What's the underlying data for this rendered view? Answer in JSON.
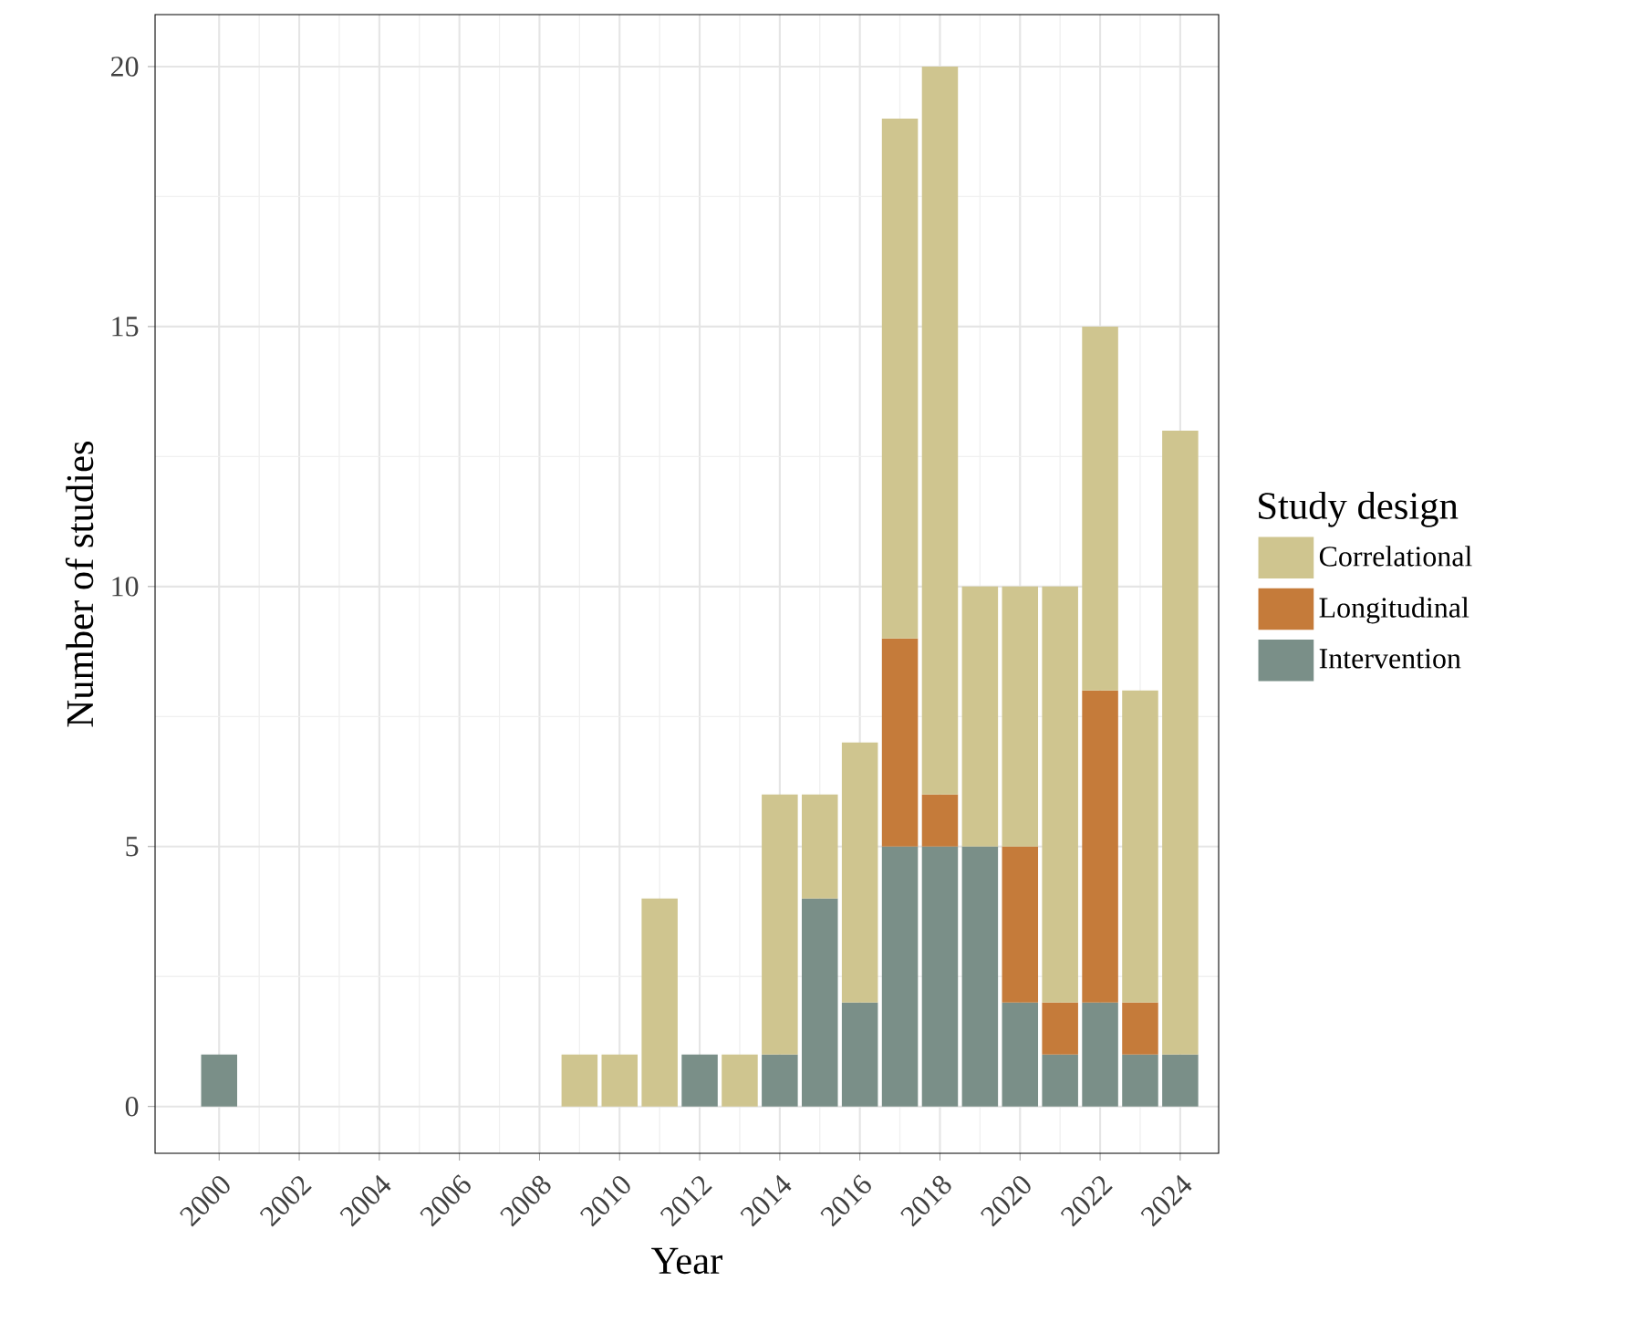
{
  "chart_data": {
    "type": "bar",
    "stacked": true,
    "xlabel": "Year",
    "ylabel": "Number of studies",
    "legend_title": "Study design",
    "legend": "right",
    "grid": true,
    "x": [
      2000,
      2009,
      2010,
      2011,
      2012,
      2013,
      2014,
      2015,
      2016,
      2017,
      2018,
      2019,
      2020,
      2021,
      2022,
      2023,
      2024
    ],
    "series": [
      {
        "name": "Intervention",
        "color": "#7a8f88",
        "values": [
          1,
          null,
          null,
          null,
          1,
          null,
          1,
          4,
          2,
          5,
          5,
          5,
          2,
          1,
          2,
          1,
          1
        ]
      },
      {
        "name": "Longitudinal",
        "color": "#c57b3a",
        "values": [
          null,
          null,
          null,
          null,
          null,
          null,
          null,
          null,
          null,
          4,
          1,
          null,
          3,
          1,
          6,
          1,
          null
        ]
      },
      {
        "name": "Correlational",
        "color": "#cfc58f",
        "values": [
          null,
          1,
          1,
          4,
          null,
          1,
          5,
          2,
          5,
          10,
          14,
          5,
          5,
          8,
          7,
          6,
          12
        ]
      }
    ],
    "xlim": [
      1998.4,
      2024.96
    ],
    "ylim": [
      -0.9,
      21
    ],
    "xticks": [
      2000,
      2002,
      2004,
      2006,
      2008,
      2010,
      2012,
      2014,
      2016,
      2018,
      2020,
      2022,
      2024
    ],
    "yticks": [
      0,
      5,
      10,
      15,
      20
    ]
  }
}
